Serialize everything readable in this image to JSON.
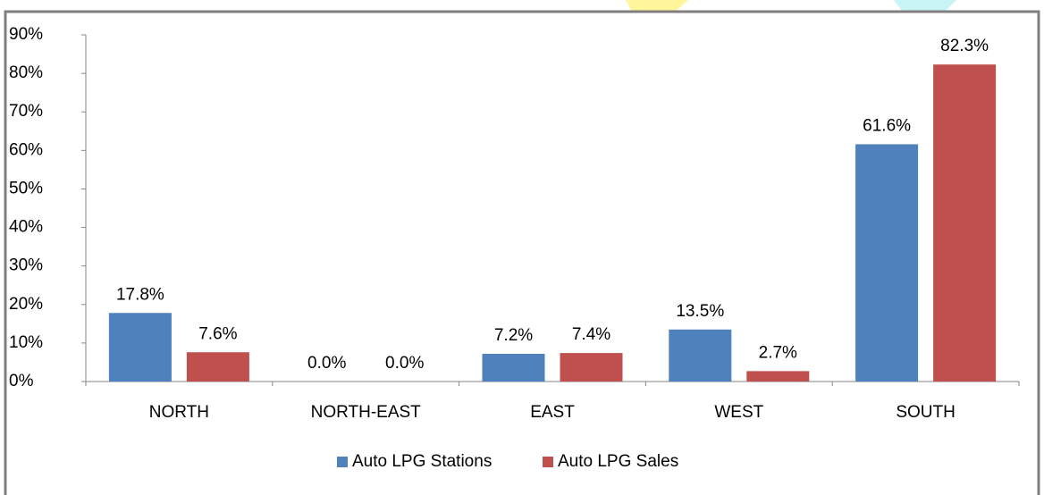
{
  "chart_data": {
    "type": "bar",
    "categories": [
      "NORTH",
      "NORTH-EAST",
      "EAST",
      "WEST",
      "SOUTH"
    ],
    "series": [
      {
        "name": "Auto LPG Stations",
        "color": "#4f81bd",
        "values": [
          17.8,
          0.0,
          7.2,
          13.5,
          61.6
        ],
        "value_labels": [
          "17.8%",
          "0.0%",
          "7.2%",
          "13.5%",
          "61.6%"
        ]
      },
      {
        "name": "Auto LPG Sales",
        "color": "#c0504d",
        "values": [
          7.6,
          0.0,
          7.4,
          2.7,
          82.3
        ],
        "value_labels": [
          "7.6%",
          "0.0%",
          "7.4%",
          "2.7%",
          "82.3%"
        ]
      }
    ],
    "ylim": [
      0,
      90
    ],
    "yticks": [
      {
        "value": 0,
        "label": "0%"
      },
      {
        "value": 10,
        "label": "10%"
      },
      {
        "value": 20,
        "label": "20%"
      },
      {
        "value": 30,
        "label": "30%"
      },
      {
        "value": 40,
        "label": "40%"
      },
      {
        "value": 50,
        "label": "50%"
      },
      {
        "value": 60,
        "label": "60%"
      },
      {
        "value": 70,
        "label": "70%"
      },
      {
        "value": 80,
        "label": "80%"
      },
      {
        "value": 90,
        "label": "90%"
      }
    ],
    "grid": false,
    "legend": "bottom"
  }
}
